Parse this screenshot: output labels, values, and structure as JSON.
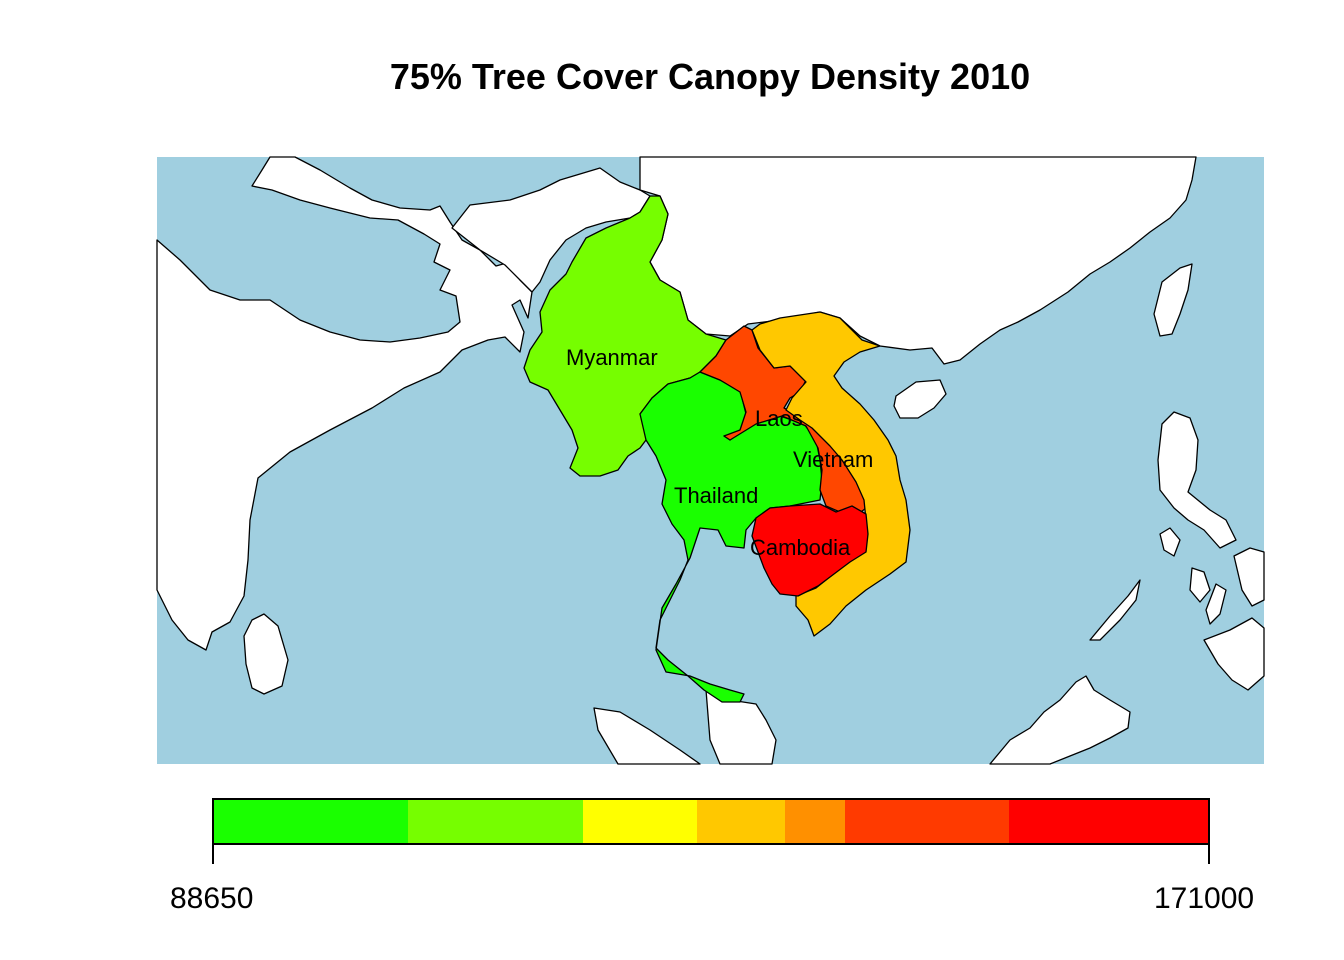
{
  "title": "75% Tree Cover Canopy Density 2010",
  "colors": {
    "ocean": "#a0cfe0",
    "land": "#ffffff",
    "border": "#000000"
  },
  "countries": [
    {
      "name": "Myanmar",
      "color": "#76fe00"
    },
    {
      "name": "Thailand",
      "color": "#1aff00"
    },
    {
      "name": "Laos",
      "color": "#ff4700"
    },
    {
      "name": "Vietnam",
      "color": "#ffc800"
    },
    {
      "name": "Cambodia",
      "color": "#ff0000"
    }
  ],
  "legend": {
    "min_label": "88650",
    "max_label": "171000",
    "colors": [
      "#1aff00",
      "#76fe00",
      "#ffff00",
      "#ffc800",
      "#ff9000",
      "#ff3a00",
      "#ff0000"
    ]
  }
}
